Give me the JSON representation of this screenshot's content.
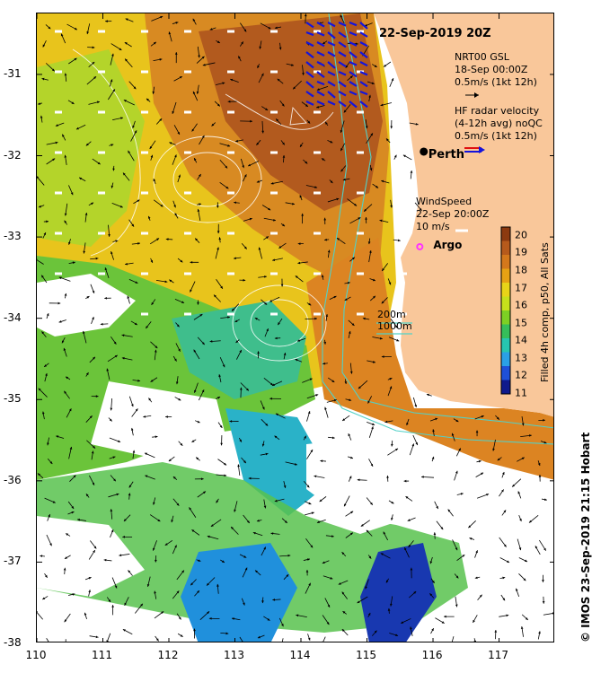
{
  "title": "22-Sep-2019 20Z",
  "credit": "© IMOS 23-Sep-2019 21:15 Hobart",
  "axes": {
    "x_ticks": [
      "110",
      "111",
      "112",
      "113",
      "114",
      "115",
      "116",
      "117"
    ],
    "y_ticks": [
      "-31",
      "-32",
      "-33",
      "-34",
      "-35",
      "-36",
      "-37",
      "-38"
    ],
    "lon_range": [
      110,
      117.85
    ],
    "lat_range": [
      -30.25,
      -38
    ]
  },
  "legend": {
    "gsl_title": "NRT00 GSL",
    "gsl_date": "18-Sep 00:00Z",
    "gsl_scale": "0.5m/s (1kt 12h)",
    "hf_title": "HF radar velocity",
    "hf_sub": "(4-12h avg) noQC",
    "hf_scale": "0.5m/s (1kt 12h)",
    "wind_title": "WindSpeed",
    "wind_date": "22-Sep 20:00Z",
    "wind_scale": "10 m/s",
    "isobath_200": "200m",
    "isobath_1000": "1000m"
  },
  "places": {
    "perth": {
      "label": "Perth",
      "lon": 115.86,
      "lat": -31.95
    },
    "argo": {
      "label": "Argo",
      "lon": 115.8,
      "lat": -33.12
    }
  },
  "colorbar": {
    "title": "Filled 4h comp, p50, All Sats",
    "ticks": [
      "20",
      "19",
      "18",
      "17",
      "16",
      "15",
      "14",
      "13",
      "12",
      "11"
    ],
    "min": 11,
    "max": 20.5
  },
  "colors": {
    "land": "#F9C79A",
    "hf_primary": "#1414DC",
    "hf_secondary": "#E01010",
    "argo": "#FF33FF",
    "isobath": "#52D1C7",
    "wind": "#FFFFFF",
    "sst_ramp": [
      "#101A8C",
      "#1E50D8",
      "#2AA0E6",
      "#27C6B0",
      "#36BE5A",
      "#7DD024",
      "#C6E01C",
      "#E8D418",
      "#E6A214",
      "#D4781C",
      "#B65A1C",
      "#8C3A10"
    ]
  }
}
